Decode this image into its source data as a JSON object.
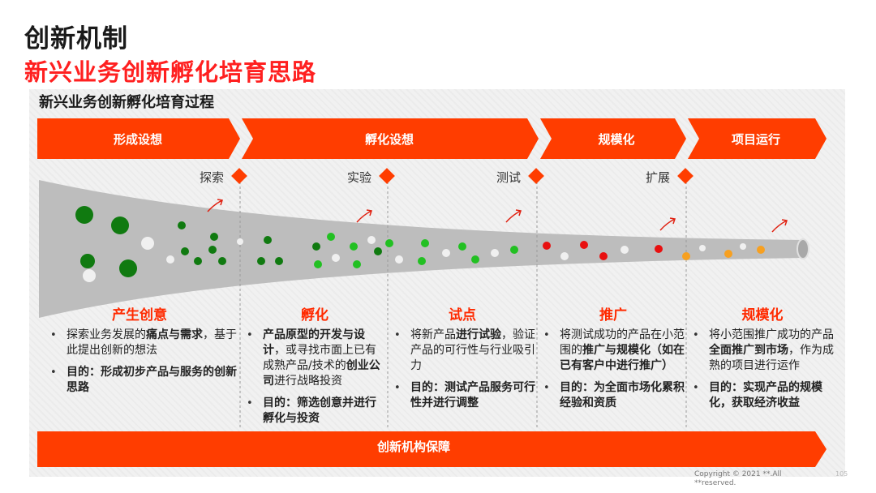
{
  "header": {
    "title": "创新机制",
    "subtitle": "新兴业务创新孵化培育思路",
    "section_title": "新兴业务创新孵化培育过程"
  },
  "stages": [
    {
      "label": "形成设想"
    },
    {
      "label": "孵化设想"
    },
    {
      "label": "规模化"
    },
    {
      "label": "项目运行"
    }
  ],
  "milestones": [
    "探索",
    "实验",
    "测试",
    "扩展"
  ],
  "phases": [
    {
      "title": "产生创意",
      "bullets": [
        [
          {
            "t": "探索业务发展的",
            "b": false
          },
          {
            "t": "痛点与需求",
            "b": true
          },
          {
            "t": "，基于此提出创新的想法",
            "b": false
          }
        ],
        [
          {
            "t": "目的：形成初步产品与服务的创新思路",
            "b": true
          }
        ]
      ]
    },
    {
      "title": "孵化",
      "bullets": [
        [
          {
            "t": "产品原型的开发与设计",
            "b": true
          },
          {
            "t": "，或寻找市面上已有成熟产品/技术的",
            "b": false
          },
          {
            "t": "创业公司",
            "b": true
          },
          {
            "t": "进行战略投资",
            "b": false
          }
        ],
        [
          {
            "t": "目的：筛选创意并进行孵化与投资",
            "b": true
          }
        ]
      ]
    },
    {
      "title": "试点",
      "bullets": [
        [
          {
            "t": "将新产品",
            "b": false
          },
          {
            "t": "进行试验",
            "b": true
          },
          {
            "t": "，验证产品的可行性与行业吸引力",
            "b": false
          }
        ],
        [
          {
            "t": "目的：测试产品服务可行性并进行调整",
            "b": true
          }
        ]
      ]
    },
    {
      "title": "推广",
      "bullets": [
        [
          {
            "t": "将测试成功的产品在小范围的",
            "b": false
          },
          {
            "t": "推广与规模化（如在已有客户中进行推广）",
            "b": true
          }
        ],
        [
          {
            "t": "目的：为全面市场化累积经验和资质",
            "b": true
          }
        ]
      ]
    },
    {
      "title": "规模化",
      "bullets": [
        [
          {
            "t": "将小范围推广成功的产品",
            "b": false
          },
          {
            "t": "全面推广到市场",
            "b": true
          },
          {
            "t": "，作为成熟的项目进行运作",
            "b": false
          }
        ],
        [
          {
            "t": "目的：实现产品的规模化，获取经济收益",
            "b": true
          }
        ]
      ]
    }
  ],
  "bottom_bar": {
    "label": "创新机构保障"
  },
  "footer": {
    "copyright": "Copyright © 2021 **.All **reserved.",
    "page": "105"
  },
  "colors": {
    "accent": "#ff3d00",
    "title_red": "#ff2020",
    "funnel": "#bdbdbd",
    "dot_dark_green": "#107a10",
    "dot_green": "#22c022",
    "dot_red": "#e81010",
    "dot_orange": "#f7a020",
    "dot_white": "#efefef"
  }
}
